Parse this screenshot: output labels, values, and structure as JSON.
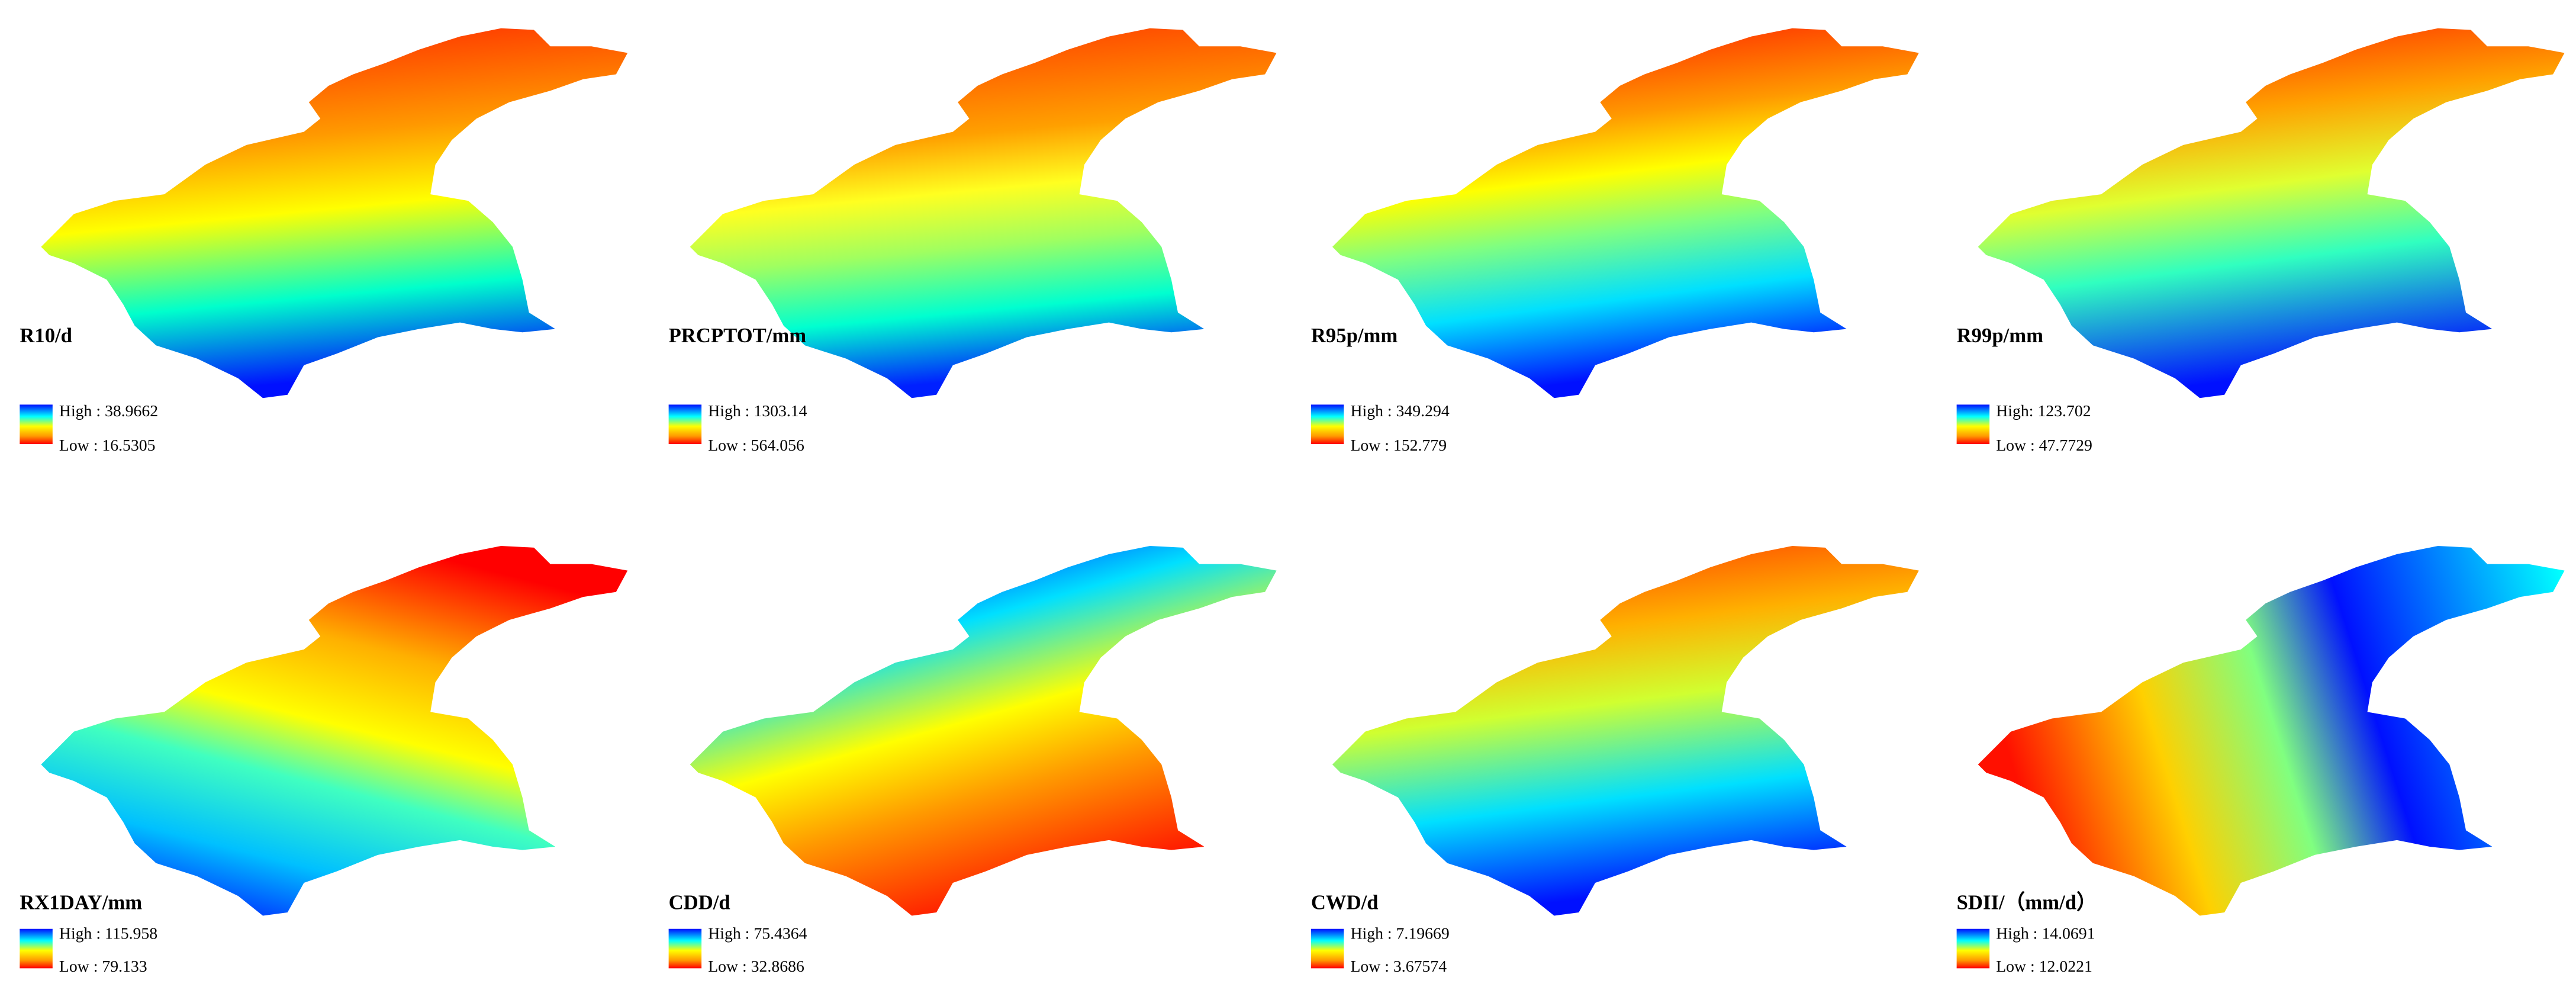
{
  "panels": [
    {
      "title": "R10/d",
      "high": "High : 38.9662",
      "low": "Low : 16.5305"
    },
    {
      "title": "PRCPTOT/mm",
      "high": "High : 1303.14",
      "low": "Low : 564.056"
    },
    {
      "title": "R95p/mm",
      "high": "High : 349.294",
      "low": "Low : 152.779"
    },
    {
      "title": "R99p/mm",
      "high": "High: 123.702",
      "low": "Low : 47.7729"
    },
    {
      "title": "RX1DAY/mm",
      "high": "High : 115.958",
      "low": "Low : 79.133"
    },
    {
      "title": "CDD/d",
      "high": "High : 75.4364",
      "low": "Low : 32.8686"
    },
    {
      "title": "CWD/d",
      "high": "High : 7.19669",
      "low": "Low : 3.67574"
    },
    {
      "title": "SDII/（mm/d）",
      "high": "High : 14.0691",
      "low": "Low : 12.0221"
    }
  ]
}
